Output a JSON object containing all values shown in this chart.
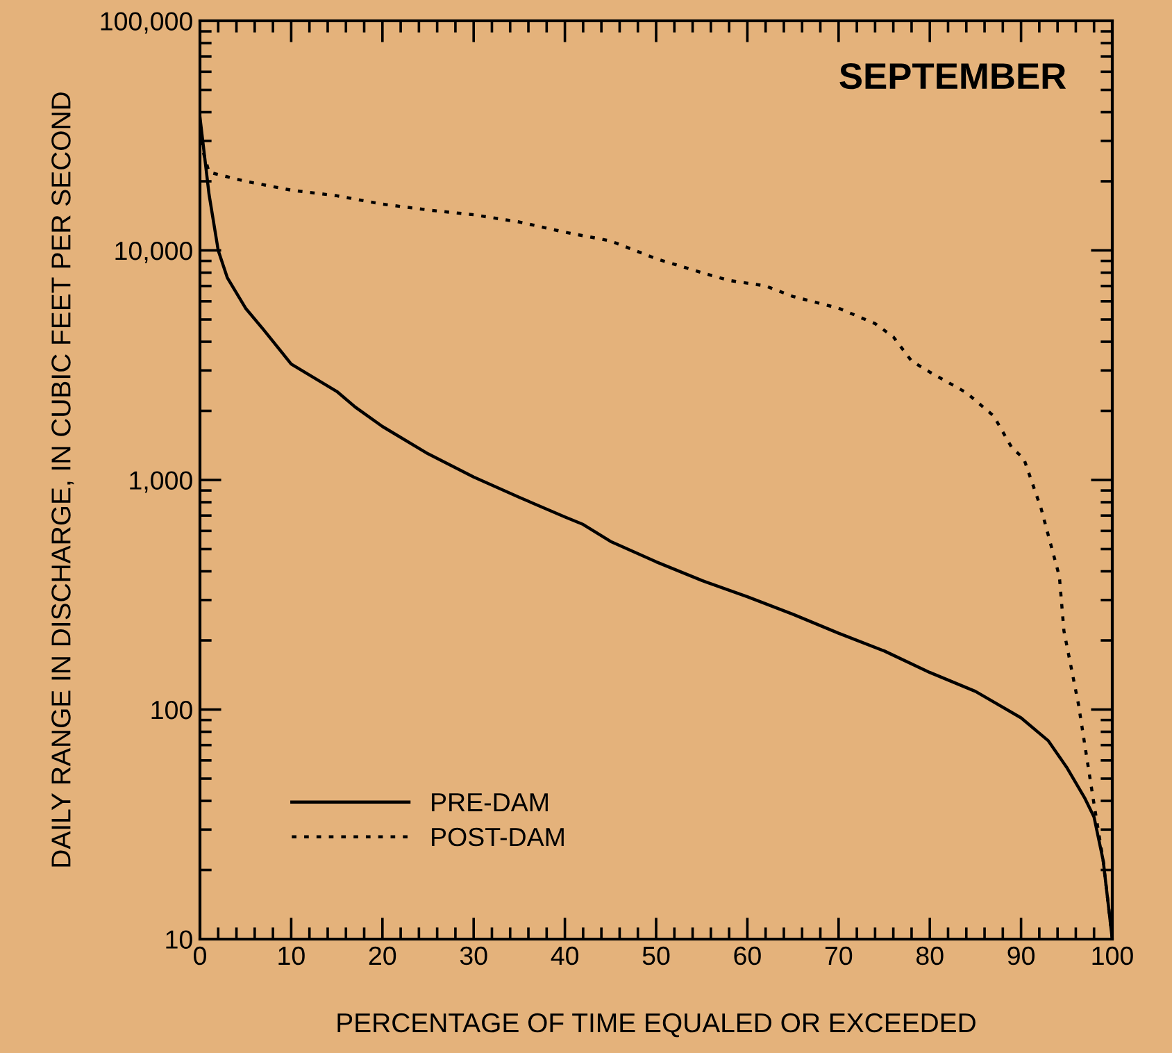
{
  "chart_data": {
    "type": "line",
    "title": "SEPTEMBER",
    "xlabel": "PERCENTAGE OF TIME EQUALED OR EXCEEDED",
    "ylabel": "DAILY RANGE IN DISCHARGE, IN CUBIC FEET PER SECOND",
    "log": "y",
    "xlim": [
      0,
      100
    ],
    "ylim": [
      10,
      100000
    ],
    "xticks": [
      0,
      10,
      20,
      30,
      40,
      50,
      60,
      70,
      80,
      90,
      100
    ],
    "yticks": [
      10,
      100,
      {
        "value": 1000,
        "label": "1,000"
      },
      {
        "value": 10000,
        "label": "10,000"
      },
      {
        "value": 100000,
        "label": "100,000"
      }
    ],
    "grid": false,
    "legend": "bottom left",
    "marker": "none",
    "series": [
      {
        "name": "PRE-DAM",
        "color": "#000000",
        "line_style": "solid",
        "x": [
          0,
          1,
          2,
          3,
          5,
          7,
          10,
          15,
          17,
          20,
          25,
          30,
          35,
          40,
          42,
          45,
          50,
          55,
          60,
          65,
          70,
          75,
          80,
          85,
          90,
          93,
          95,
          97,
          98,
          99,
          100
        ],
        "values": [
          38000,
          17500,
          10000,
          7600,
          5600,
          4500,
          3200,
          2430,
          2080,
          1710,
          1300,
          1030,
          840,
          690,
          640,
          540,
          440,
          365,
          310,
          260,
          215,
          180,
          145,
          120,
          92,
          73,
          56,
          41,
          34,
          22,
          10
        ]
      },
      {
        "name": "POST-DAM",
        "color": "#000000",
        "line_style": "dotted",
        "x": [
          0,
          1,
          5,
          10,
          15,
          20,
          25,
          30,
          35,
          40,
          45,
          50,
          55,
          58,
          62,
          65,
          70,
          74,
          76,
          78,
          80,
          84,
          87,
          89,
          90.3,
          92.2,
          94.2,
          94.7,
          96.3,
          97.9,
          99,
          100
        ],
        "values": [
          30000,
          21900,
          20000,
          18300,
          17300,
          15900,
          15000,
          14300,
          13300,
          12000,
          11000,
          9200,
          8000,
          7400,
          7000,
          6300,
          5600,
          4800,
          4200,
          3300,
          2950,
          2400,
          1900,
          1380,
          1240,
          750,
          380,
          220,
          105,
          41,
          22,
          10
        ]
      }
    ]
  }
}
